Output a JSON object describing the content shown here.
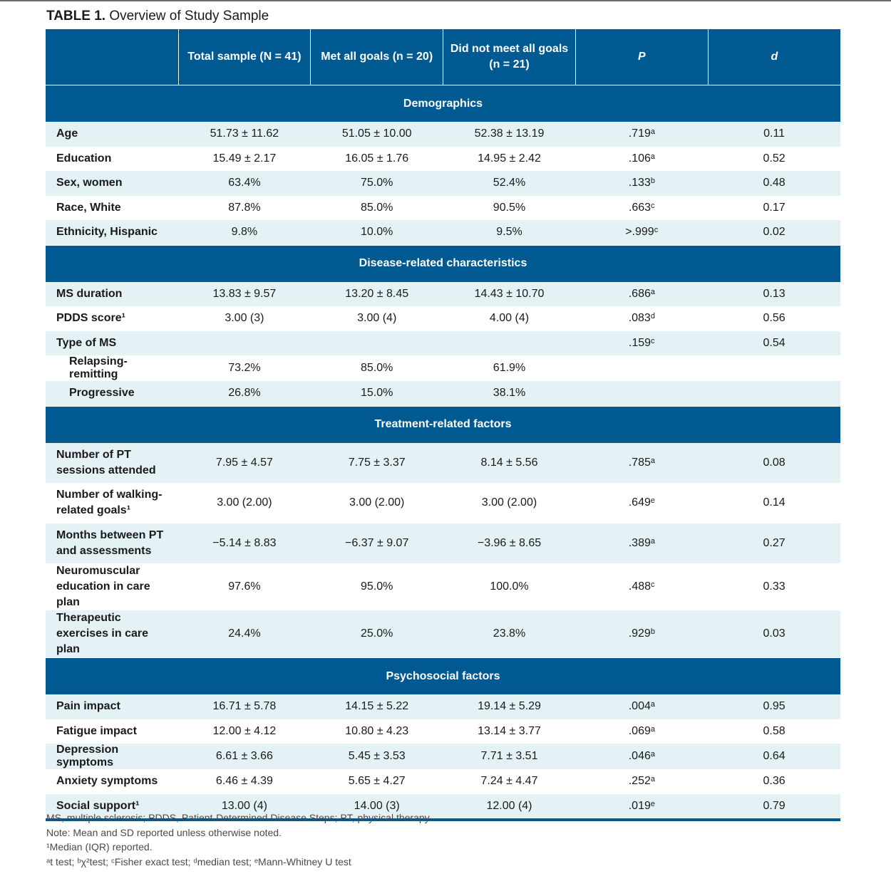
{
  "caption": {
    "label": "TABLE 1.",
    "title": "Overview of Study Sample"
  },
  "header": {
    "col0": "",
    "col1": "Total sample (N = 41)",
    "col2": "Met all goals (n = 20)",
    "col3": "Did not meet all goals (n = 21)",
    "col4": "P",
    "col5": "d"
  },
  "sections": [
    {
      "title": "Demographics",
      "rows": [
        {
          "label": "Age",
          "total": "51.73 ± 11.62",
          "met": "51.05 ± 10.00",
          "notmet": "52.38 ± 13.19",
          "p": ".719ᵃ",
          "d": "0.11"
        },
        {
          "label": "Education",
          "total": "15.49 ± 2.17",
          "met": "16.05 ± 1.76",
          "notmet": "14.95 ± 2.42",
          "p": ".106ᵃ",
          "d": "0.52"
        },
        {
          "label": "Sex, women",
          "total": "63.4%",
          "met": "75.0%",
          "notmet": "52.4%",
          "p": ".133ᵇ",
          "d": "0.48"
        },
        {
          "label": "Race, White",
          "total": "87.8%",
          "met": "85.0%",
          "notmet": "90.5%",
          "p": ".663ᶜ",
          "d": "0.17"
        },
        {
          "label": "Ethnicity, Hispanic",
          "total": "9.8%",
          "met": "10.0%",
          "notmet": "9.5%",
          "p": ">.999ᶜ",
          "d": "0.02"
        }
      ]
    },
    {
      "title": "Disease-related characteristics",
      "rows": [
        {
          "label": "MS duration",
          "total": "13.83 ± 9.57",
          "met": "13.20 ± 8.45",
          "notmet": "14.43 ± 10.70",
          "p": ".686ᵃ",
          "d": "0.13"
        },
        {
          "label": "PDDS score¹",
          "total": "3.00 (3)",
          "met": "3.00 (4)",
          "notmet": "4.00 (4)",
          "p": ".083ᵈ",
          "d": "0.56"
        },
        {
          "label": "Type of MS",
          "total": "",
          "met": "",
          "notmet": "",
          "p": ".159ᶜ",
          "d": "0.54"
        },
        {
          "label": "Relapsing-remitting",
          "total": "73.2%",
          "met": "85.0%",
          "notmet": "61.9%",
          "p": "",
          "d": ""
        },
        {
          "label": "Progressive",
          "total": "26.8%",
          "met": "15.0%",
          "notmet": "38.1%",
          "p": "",
          "d": ""
        }
      ]
    },
    {
      "title": "Treatment-related factors",
      "rows": [
        {
          "label": "Number of PT sessions attended",
          "total": "7.95 ± 4.57",
          "met": "7.75 ± 3.37",
          "notmet": "8.14 ± 5.56",
          "p": ".785ᵃ",
          "d": "0.08"
        },
        {
          "label": "Number of walking-related goals¹",
          "total": "3.00 (2.00)",
          "met": "3.00 (2.00)",
          "notmet": "3.00 (2.00)",
          "p": ".649ᵉ",
          "d": "0.14"
        },
        {
          "label": "Months between PT and assessments",
          "total": "−5.14 ± 8.83",
          "met": "−6.37 ± 9.07",
          "notmet": "−3.96 ± 8.65",
          "p": ".389ᵃ",
          "d": "0.27"
        },
        {
          "label": "Neuromuscular education in care plan",
          "total": "97.6%",
          "met": "95.0%",
          "notmet": "100.0%",
          "p": ".488ᶜ",
          "d": "0.33"
        },
        {
          "label": "Therapeutic exercises in care plan",
          "total": "24.4%",
          "met": "25.0%",
          "notmet": "23.8%",
          "p": ".929ᵇ",
          "d": "0.03"
        }
      ]
    },
    {
      "title": "Psychosocial factors",
      "rows": [
        {
          "label": "Pain impact",
          "total": "16.71 ± 5.78",
          "met": "14.15 ± 5.22",
          "notmet": "19.14 ± 5.29",
          "p": ".004ᵃ",
          "d": "0.95"
        },
        {
          "label": "Fatigue impact",
          "total": "12.00 ± 4.12",
          "met": "10.80 ± 4.23",
          "notmet": "13.14 ± 3.77",
          "p": ".069ᵃ",
          "d": "0.58"
        },
        {
          "label": "Depression symptoms",
          "total": "6.61 ± 3.66",
          "met": "5.45 ± 3.53",
          "notmet": "7.71 ± 3.51",
          "p": ".046ᵃ",
          "d": "0.64"
        },
        {
          "label": "Anxiety symptoms",
          "total": "6.46 ± 4.39",
          "met": "5.65 ± 4.27",
          "notmet": "7.24 ± 4.47",
          "p": ".252ᵃ",
          "d": "0.36"
        },
        {
          "label": "Social support¹",
          "total": "13.00 (4)",
          "met": "14.00 (3)",
          "notmet": "12.00 (4)",
          "p": ".019ᵉ",
          "d": "0.79"
        }
      ]
    }
  ],
  "notes": {
    "line1": "MS, multiple sclerosis; PDDS, Patient-Determined Disease Steps; PT, physical therapy.",
    "line2": "Note: Mean and SD reported unless otherwise noted.",
    "line3": "¹Median (IQR) reported.",
    "line4": "ᵃt test; ᵇχ²test; ᶜFisher exact test; ᵈmedian test; ᵉMann-Whitney U test"
  },
  "colors": {
    "header_bg": "#005a92",
    "stripe_bg": "#e4f2f6"
  }
}
